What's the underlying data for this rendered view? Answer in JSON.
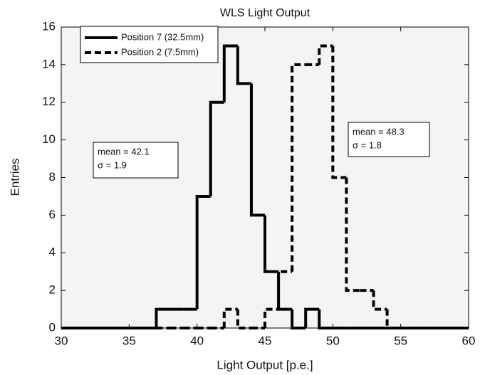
{
  "chart_data": {
    "type": "histogram",
    "title": "WLS Light Output",
    "x_label": "Light Output [p.e.]",
    "y_label": "Entries",
    "bins": [
      30,
      31,
      32,
      33,
      34,
      35,
      36,
      37,
      38,
      39,
      40,
      41,
      42,
      43,
      44,
      45,
      46,
      47,
      48,
      49,
      50,
      51,
      52,
      53,
      54,
      55,
      56,
      57,
      58,
      59,
      60
    ],
    "series": [
      {
        "name": "Position 7 (32.5mm)",
        "color": "#000000",
        "line_style": "solid",
        "values": [
          0,
          0,
          0,
          0,
          0,
          0,
          0,
          1,
          1,
          1,
          7,
          12,
          15,
          13,
          6,
          3,
          1,
          0,
          1,
          0,
          0,
          0,
          0,
          0,
          0,
          0,
          0,
          0,
          0,
          0
        ]
      },
      {
        "name": "Position 2 (7.5mm)",
        "color": "#000000",
        "line_style": "dashed",
        "values": [
          0,
          0,
          0,
          0,
          0,
          0,
          0,
          0,
          0,
          0,
          0,
          0,
          1,
          0,
          0,
          1,
          3,
          14,
          14,
          15,
          8,
          2,
          2,
          1,
          0,
          0,
          0,
          0,
          0,
          0
        ]
      }
    ],
    "annotations": [
      {
        "lines": [
          "mean = 42.1",
          "σ = 1.9"
        ]
      },
      {
        "lines": [
          "mean = 48.3",
          "σ = 1.8"
        ]
      }
    ],
    "xlim": [
      30,
      60
    ],
    "ylim": [
      0,
      16
    ],
    "xticks": [
      30,
      35,
      40,
      45,
      50,
      55,
      60
    ],
    "yticks": [
      0,
      2,
      4,
      6,
      8,
      10,
      12,
      14,
      16
    ],
    "legend": "upper left"
  }
}
